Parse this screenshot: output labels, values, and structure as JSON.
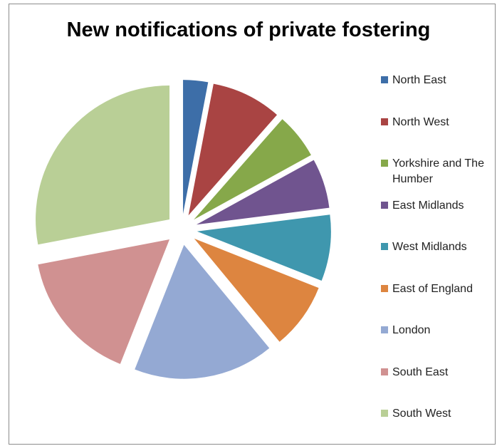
{
  "chart_data": {
    "type": "pie",
    "title": "New notifications of private fostering",
    "categories": [
      "North East",
      "North West",
      "Yorkshire and The Humber",
      "East Midlands",
      "West Midlands",
      "East of England",
      "London",
      "South East",
      "South West"
    ],
    "values": [
      3,
      8.5,
      5.5,
      6,
      8,
      8,
      17,
      16,
      28
    ],
    "colors": [
      "#3d6ea8",
      "#a94443",
      "#86a84a",
      "#70548f",
      "#3f97ae",
      "#dd8540",
      "#94a9d3",
      "#d09191",
      "#b9cf96"
    ],
    "legend": "right"
  }
}
